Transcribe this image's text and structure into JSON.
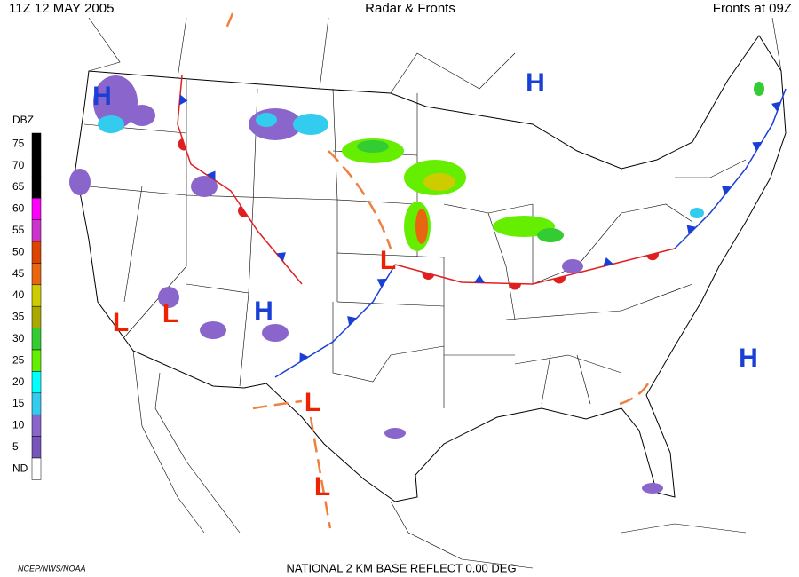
{
  "header": {
    "time": "11Z  12 MAY  2005",
    "title": "Radar & Fronts",
    "fronts_time": "Fronts at 09Z"
  },
  "legend": {
    "title": "DBZ",
    "levels": [
      {
        "label": "75",
        "color": "#000000"
      },
      {
        "label": "70",
        "color": "#000000"
      },
      {
        "label": "65",
        "color": "#000000"
      },
      {
        "label": "60",
        "color": "#ff00ff"
      },
      {
        "label": "55",
        "color": "#cc33cc"
      },
      {
        "label": "50",
        "color": "#dd4400"
      },
      {
        "label": "45",
        "color": "#e8660f"
      },
      {
        "label": "40",
        "color": "#cccc00"
      },
      {
        "label": "35",
        "color": "#a8a800"
      },
      {
        "label": "30",
        "color": "#33cc33"
      },
      {
        "label": "25",
        "color": "#66ee00"
      },
      {
        "label": "20",
        "color": "#00ffff"
      },
      {
        "label": "15",
        "color": "#33ccee"
      },
      {
        "label": "10",
        "color": "#8a66cc"
      },
      {
        "label": "5",
        "color": "#7755bb"
      },
      {
        "label": "ND",
        "color": "#ffffff"
      }
    ]
  },
  "pressure_centers": [
    {
      "label": "H",
      "color": "#1a3fd6"
    },
    {
      "label": "H",
      "color": "#1a3fd6"
    },
    {
      "label": "H",
      "color": "#1a3fd6"
    },
    {
      "label": "H",
      "color": "#1a3fd6"
    },
    {
      "label": "L",
      "color": "#ee2200"
    },
    {
      "label": "L",
      "color": "#ee2200"
    },
    {
      "label": "L",
      "color": "#ee2200"
    },
    {
      "label": "L",
      "color": "#ee2200"
    },
    {
      "label": "L",
      "color": "#ee2200"
    }
  ],
  "footer": {
    "source": "NCEP/NWS/NOAA",
    "product": "NATIONAL 2 KM BASE REFLECT 0.00 DEG"
  }
}
